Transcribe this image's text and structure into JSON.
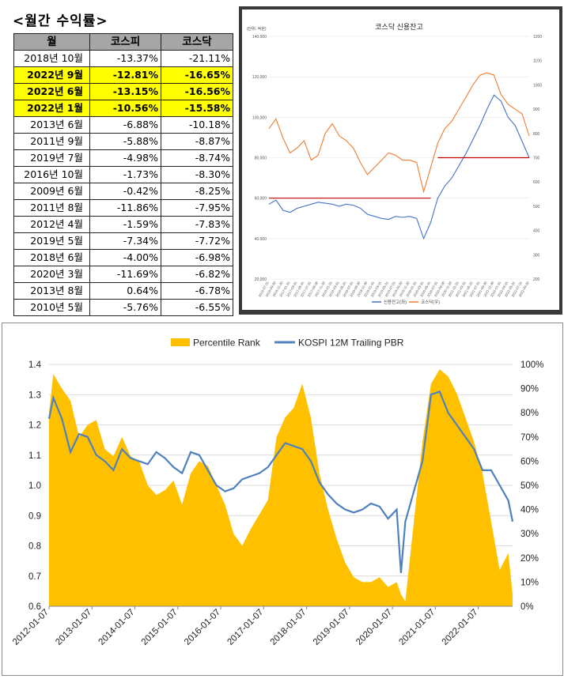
{
  "returns_table": {
    "title": "<월간 수익률>",
    "headers": [
      "월",
      "코스피",
      "코스닥"
    ],
    "rows": [
      {
        "month": "2018년 10월",
        "kospi": "-13.37%",
        "kosdaq": "-21.11%",
        "highlight": false
      },
      {
        "month": "2022년 9월",
        "kospi": "-12.81%",
        "kosdaq": "-16.65%",
        "highlight": true
      },
      {
        "month": "2022년 6월",
        "kospi": "-13.15%",
        "kosdaq": "-16.56%",
        "highlight": true
      },
      {
        "month": "2022년 1월",
        "kospi": "-10.56%",
        "kosdaq": "-15.58%",
        "highlight": true
      },
      {
        "month": "2013년 6월",
        "kospi": "-6.88%",
        "kosdaq": "-10.18%",
        "highlight": false
      },
      {
        "month": "2011년 9월",
        "kospi": "-5.88%",
        "kosdaq": "-8.87%",
        "highlight": false
      },
      {
        "month": "2019년 7월",
        "kospi": "-4.98%",
        "kosdaq": "-8.74%",
        "highlight": false
      },
      {
        "month": "2016년 10월",
        "kospi": "-1.73%",
        "kosdaq": "-8.30%",
        "highlight": false
      },
      {
        "month": "2009년 6월",
        "kospi": "-0.42%",
        "kosdaq": "-8.25%",
        "highlight": false
      },
      {
        "month": "2011년 8월",
        "kospi": "-11.86%",
        "kosdaq": "-7.95%",
        "highlight": false
      },
      {
        "month": "2012년 4월",
        "kospi": "-1.59%",
        "kosdaq": "-7.83%",
        "highlight": false
      },
      {
        "month": "2019년 5월",
        "kospi": "-7.34%",
        "kosdaq": "-7.72%",
        "highlight": false
      },
      {
        "month": "2018년 6월",
        "kospi": "-4.00%",
        "kosdaq": "-6.98%",
        "highlight": false
      },
      {
        "month": "2020년 3월",
        "kospi": "-11.69%",
        "kosdaq": "-6.82%",
        "highlight": false
      },
      {
        "month": "2013년 8월",
        "kospi": "0.64%",
        "kosdaq": "-6.78%",
        "highlight": false
      },
      {
        "month": "2010년 5월",
        "kospi": "-5.76%",
        "kosdaq": "-6.55%",
        "highlight": false
      }
    ]
  },
  "colors": {
    "header_gray": "#a6a6a6",
    "highlight_yellow": "#ffff00",
    "credit_blue": "#4472c4",
    "kosdaq_orange": "#ed7d31",
    "ref_red": "#c00000",
    "percentile_gold": "#ffc000",
    "pbr_blue": "#4f81bd"
  },
  "chart_data": [
    {
      "type": "line",
      "title": "코스닥 신용잔고",
      "unit_label": "(단위: 억원)",
      "x": [
        "2016-07-31",
        "2016-09-30",
        "2016-11-30",
        "2017-01-31",
        "2017-03-31",
        "2017-05-31",
        "2017-07-31",
        "2017-09-30",
        "2017-11-30",
        "2018-01-31",
        "2018-03-31",
        "2018-05-31",
        "2018-07-31",
        "2018-09-30",
        "2018-11-30",
        "2019-01-31",
        "2019-03-31",
        "2019-05-31",
        "2019-07-31",
        "2019-09-30",
        "2019-11-30",
        "2020-01-31",
        "2020-03-31",
        "2020-05-31",
        "2020-07-31",
        "2020-09-30",
        "2020-11-30",
        "2021-01-31",
        "2021-03-31",
        "2021-05-31",
        "2021-07-31",
        "2021-09-30",
        "2021-11-30",
        "2022-01-31",
        "2022-03-31",
        "2022-05-31",
        "2022-07-31",
        "2022-09-30"
      ],
      "x_tick_labels": [
        "2016-07-31",
        "2016-09-30",
        "2016-11-30",
        "2017-01-31",
        "2017-03-31",
        "2017-05-31",
        "2017-07-31",
        "2017-09-30",
        "2017-11-30",
        "2018-01-31",
        "2018-03-31",
        "2018-05-31",
        "2018-07-31",
        "2018-09-30",
        "2018-11-30",
        "2019-01-31",
        "2019-03-31",
        "2019-05-31",
        "2019-07-31",
        "2019-09-30",
        "2019-11-30",
        "2020-01-31",
        "2020-03-31",
        "2020-05-31",
        "2020-07-31",
        "2020-09-30",
        "2020-11-30",
        "2021-01-31",
        "2021-03-31",
        "2021-05-31",
        "2021-07-31",
        "2021-09-30",
        "2021-11-30",
        "2022-01-31",
        "2022-03-31",
        "2022-05-31",
        "2022-07-31",
        "2022-09-30"
      ],
      "series": [
        {
          "name": "신용잔고(좌)",
          "axis": "left",
          "values": [
            57000,
            59000,
            54000,
            53000,
            55000,
            56000,
            57000,
            58000,
            57500,
            57000,
            56000,
            57000,
            56500,
            55000,
            52000,
            51000,
            50000,
            49500,
            51000,
            50500,
            51000,
            50000,
            40000,
            48000,
            60000,
            66000,
            70000,
            76000,
            82000,
            89000,
            96000,
            104000,
            111000,
            108000,
            100000,
            96000,
            88000,
            80000
          ]
        },
        {
          "name": "코스닥(우)",
          "axis": "right",
          "values": [
            820,
            860,
            780,
            720,
            740,
            770,
            690,
            710,
            800,
            840,
            790,
            770,
            740,
            680,
            630,
            660,
            690,
            720,
            710,
            690,
            690,
            680,
            560,
            660,
            760,
            820,
            850,
            900,
            950,
            1000,
            1040,
            1050,
            1040,
            960,
            920,
            900,
            880,
            790
          ]
        }
      ],
      "reference_lines": [
        {
          "axis": "left",
          "value": 60000,
          "x_start": "2016-07-31",
          "x_end": "2020-05-31"
        },
        {
          "axis": "left",
          "value": 80000,
          "x_start": "2020-07-31",
          "x_end": "2022-09-30"
        }
      ],
      "y_left": {
        "min": 20000,
        "max": 140000,
        "ticks": [
          "20,000",
          "40,000",
          "60,000",
          "80,000",
          "100,000",
          "120,000",
          "140,000"
        ]
      },
      "y_right": {
        "min": 200,
        "max": 1200,
        "ticks": [
          "200",
          "300",
          "400",
          "500",
          "600",
          "700",
          "800",
          "900",
          "1000",
          "1100",
          "1200"
        ]
      },
      "legend": [
        "신용잔고(좌)",
        "코스닥(우)"
      ],
      "legend_position": "bottom"
    },
    {
      "type": "area",
      "title": "",
      "x_tick_labels": [
        "2012-01-07",
        "2013-01-07",
        "2014-01-07",
        "2015-01-07",
        "2016-01-07",
        "2017-01-07",
        "2018-01-07",
        "2019-01-07",
        "2020-01-07",
        "2021-01-07",
        "2022-01-07"
      ],
      "x_years": [
        2012.0,
        2012.1,
        2012.3,
        2012.5,
        2012.7,
        2012.9,
        2013.1,
        2013.3,
        2013.5,
        2013.7,
        2013.9,
        2014.1,
        2014.3,
        2014.5,
        2014.7,
        2014.9,
        2015.1,
        2015.3,
        2015.5,
        2015.7,
        2015.9,
        2016.1,
        2016.3,
        2016.5,
        2016.7,
        2016.9,
        2017.1,
        2017.3,
        2017.5,
        2017.7,
        2017.9,
        2018.1,
        2018.3,
        2018.5,
        2018.7,
        2018.9,
        2019.1,
        2019.3,
        2019.5,
        2019.7,
        2019.9,
        2020.1,
        2020.2,
        2020.3,
        2020.5,
        2020.7,
        2020.9,
        2021.1,
        2021.3,
        2021.5,
        2021.7,
        2021.9,
        2022.1,
        2022.3,
        2022.5,
        2022.7,
        2022.8
      ],
      "series": [
        {
          "name": "Percentile Rank",
          "axis": "right",
          "unit": "%",
          "values": [
            80,
            96,
            90,
            85,
            70,
            75,
            77,
            65,
            62,
            70,
            62,
            60,
            50,
            46,
            48,
            52,
            42,
            55,
            60,
            58,
            50,
            42,
            30,
            25,
            32,
            38,
            44,
            70,
            78,
            82,
            92,
            78,
            55,
            40,
            28,
            18,
            12,
            10,
            10,
            12,
            8,
            10,
            5,
            2,
            35,
            68,
            92,
            98,
            95,
            88,
            78,
            68,
            55,
            35,
            15,
            22,
            5
          ]
        },
        {
          "name": "KOSPI 12M Trailing PBR",
          "axis": "left",
          "values": [
            1.22,
            1.29,
            1.22,
            1.11,
            1.17,
            1.16,
            1.1,
            1.08,
            1.05,
            1.12,
            1.09,
            1.08,
            1.07,
            1.11,
            1.09,
            1.06,
            1.04,
            1.11,
            1.1,
            1.05,
            1.0,
            0.98,
            0.99,
            1.02,
            1.03,
            1.04,
            1.06,
            1.1,
            1.14,
            1.13,
            1.12,
            1.08,
            1.01,
            0.97,
            0.94,
            0.92,
            0.91,
            0.92,
            0.94,
            0.93,
            0.89,
            0.92,
            0.71,
            0.88,
            0.98,
            1.08,
            1.3,
            1.31,
            1.24,
            1.2,
            1.16,
            1.12,
            1.05,
            1.05,
            1.0,
            0.95,
            0.88
          ]
        }
      ],
      "y_left": {
        "min": 0.6,
        "max": 1.4,
        "ticks": [
          "0.6",
          "0.7",
          "0.8",
          "0.9",
          "1.0",
          "1.1",
          "1.2",
          "1.3",
          "1.4"
        ]
      },
      "y_right": {
        "min": 0,
        "max": 100,
        "ticks": [
          "0%",
          "10%",
          "20%",
          "30%",
          "40%",
          "50%",
          "60%",
          "70%",
          "80%",
          "90%",
          "100%"
        ]
      },
      "legend": [
        "Percentile Rank",
        "KOSPI 12M Trailing PBR"
      ],
      "legend_position": "top",
      "grid": "horizontal"
    }
  ]
}
